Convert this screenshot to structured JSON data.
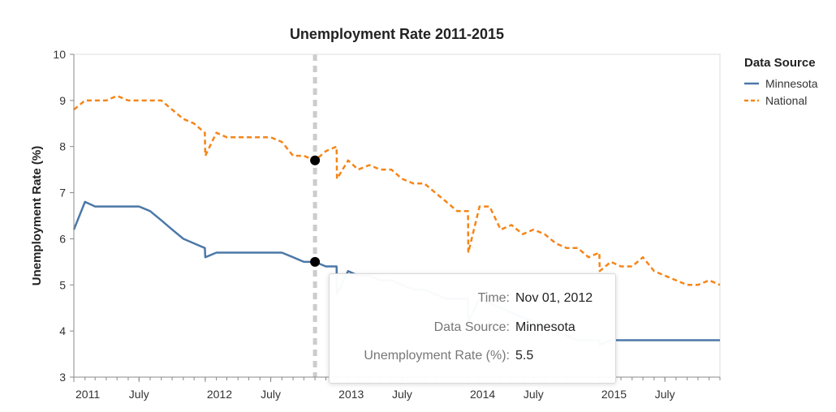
{
  "chart_data": {
    "type": "line",
    "title": "Unemployment Rate 2011-2015",
    "xlabel": "",
    "ylabel": "Unemployment Rate (%)",
    "ylim": [
      3,
      10
    ],
    "xlim": [
      "2011-01-01",
      "2015-12-01"
    ],
    "y_ticks": [
      3,
      4,
      5,
      6,
      7,
      8,
      9,
      10
    ],
    "x_ticks": [
      {
        "date": "2011-01-01",
        "label": "2011"
      },
      {
        "date": "2011-07-01",
        "label": "July"
      },
      {
        "date": "2012-01-01",
        "label": "2012"
      },
      {
        "date": "2012-07-01",
        "label": "July"
      },
      {
        "date": "2013-01-01",
        "label": "2013"
      },
      {
        "date": "2013-07-01",
        "label": "July"
      },
      {
        "date": "2014-01-01",
        "label": "2014"
      },
      {
        "date": "2014-07-01",
        "label": "July"
      },
      {
        "date": "2015-01-01",
        "label": "2015"
      },
      {
        "date": "2015-07-01",
        "label": "July"
      }
    ],
    "legend": {
      "title": "Data Source",
      "position": "top-right"
    },
    "grid": false,
    "series": [
      {
        "name": "Minnesota",
        "color": "#4c78a8",
        "dash": "solid",
        "points": [
          [
            "2011-01-01",
            6.2
          ],
          [
            "2011-02-01",
            6.8
          ],
          [
            "2011-03-01",
            6.7
          ],
          [
            "2011-04-01",
            6.7
          ],
          [
            "2011-05-01",
            6.7
          ],
          [
            "2011-06-01",
            6.7
          ],
          [
            "2011-07-01",
            6.7
          ],
          [
            "2011-08-01",
            6.6
          ],
          [
            "2011-09-01",
            6.4
          ],
          [
            "2011-10-01",
            6.2
          ],
          [
            "2011-11-01",
            6.0
          ],
          [
            "2011-12-01",
            5.9
          ],
          [
            "2011-12-31",
            5.8
          ],
          [
            "2012-01-01",
            5.6
          ],
          [
            "2012-02-01",
            5.7
          ],
          [
            "2012-03-01",
            5.7
          ],
          [
            "2012-04-01",
            5.7
          ],
          [
            "2012-05-01",
            5.7
          ],
          [
            "2012-06-01",
            5.7
          ],
          [
            "2012-07-01",
            5.7
          ],
          [
            "2012-08-01",
            5.7
          ],
          [
            "2012-09-01",
            5.6
          ],
          [
            "2012-10-01",
            5.5
          ],
          [
            "2012-11-01",
            5.5
          ],
          [
            "2012-12-01",
            5.4
          ],
          [
            "2012-12-31",
            5.4
          ],
          [
            "2013-01-01",
            4.8
          ],
          [
            "2013-02-01",
            5.3
          ],
          [
            "2013-03-01",
            5.2
          ],
          [
            "2013-04-01",
            5.2
          ],
          [
            "2013-05-01",
            5.1
          ],
          [
            "2013-06-01",
            5.1
          ],
          [
            "2013-07-01",
            5.0
          ],
          [
            "2013-08-01",
            4.9
          ],
          [
            "2013-09-01",
            4.9
          ],
          [
            "2013-10-01",
            4.8
          ],
          [
            "2013-11-01",
            4.7
          ],
          [
            "2013-12-01",
            4.7
          ],
          [
            "2013-12-31",
            4.7
          ],
          [
            "2014-01-01",
            4.2
          ],
          [
            "2014-02-01",
            4.7
          ],
          [
            "2014-03-01",
            4.6
          ],
          [
            "2014-04-01",
            4.5
          ],
          [
            "2014-05-01",
            4.4
          ],
          [
            "2014-06-01",
            4.3
          ],
          [
            "2014-07-01",
            4.2
          ],
          [
            "2014-08-01",
            4.1
          ],
          [
            "2014-09-01",
            4.0
          ],
          [
            "2014-10-01",
            3.9
          ],
          [
            "2014-11-01",
            3.8
          ],
          [
            "2014-12-01",
            3.8
          ],
          [
            "2014-12-31",
            3.8
          ],
          [
            "2015-01-01",
            3.7
          ],
          [
            "2015-02-01",
            3.8
          ],
          [
            "2015-03-01",
            3.8
          ],
          [
            "2015-04-01",
            3.8
          ],
          [
            "2015-05-01",
            3.8
          ],
          [
            "2015-06-01",
            3.8
          ],
          [
            "2015-07-01",
            3.8
          ],
          [
            "2015-08-01",
            3.8
          ],
          [
            "2015-09-01",
            3.8
          ],
          [
            "2015-10-01",
            3.8
          ],
          [
            "2015-11-01",
            3.8
          ],
          [
            "2015-12-01",
            3.8
          ]
        ]
      },
      {
        "name": "National",
        "color": "#f58518",
        "dash": "dashed",
        "points": [
          [
            "2011-01-01",
            8.8
          ],
          [
            "2011-02-01",
            9.0
          ],
          [
            "2011-03-01",
            9.0
          ],
          [
            "2011-04-01",
            9.0
          ],
          [
            "2011-05-01",
            9.1
          ],
          [
            "2011-06-01",
            9.0
          ],
          [
            "2011-07-01",
            9.0
          ],
          [
            "2011-08-01",
            9.0
          ],
          [
            "2011-09-01",
            9.0
          ],
          [
            "2011-10-01",
            8.8
          ],
          [
            "2011-11-01",
            8.6
          ],
          [
            "2011-12-01",
            8.5
          ],
          [
            "2011-12-31",
            8.3
          ],
          [
            "2012-01-01",
            7.8
          ],
          [
            "2012-02-01",
            8.3
          ],
          [
            "2012-03-01",
            8.2
          ],
          [
            "2012-04-01",
            8.2
          ],
          [
            "2012-05-01",
            8.2
          ],
          [
            "2012-06-01",
            8.2
          ],
          [
            "2012-07-01",
            8.2
          ],
          [
            "2012-08-01",
            8.1
          ],
          [
            "2012-09-01",
            7.8
          ],
          [
            "2012-10-01",
            7.8
          ],
          [
            "2012-11-01",
            7.7
          ],
          [
            "2012-12-01",
            7.9
          ],
          [
            "2012-12-31",
            8.0
          ],
          [
            "2013-01-01",
            7.3
          ],
          [
            "2013-02-01",
            7.7
          ],
          [
            "2013-03-01",
            7.5
          ],
          [
            "2013-04-01",
            7.6
          ],
          [
            "2013-05-01",
            7.5
          ],
          [
            "2013-06-01",
            7.5
          ],
          [
            "2013-07-01",
            7.3
          ],
          [
            "2013-08-01",
            7.2
          ],
          [
            "2013-09-01",
            7.2
          ],
          [
            "2013-10-01",
            7.0
          ],
          [
            "2013-11-01",
            6.8
          ],
          [
            "2013-12-01",
            6.6
          ],
          [
            "2013-12-31",
            6.6
          ],
          [
            "2014-01-01",
            5.7
          ],
          [
            "2014-02-01",
            6.7
          ],
          [
            "2014-03-01",
            6.7
          ],
          [
            "2014-04-01",
            6.2
          ],
          [
            "2014-05-01",
            6.3
          ],
          [
            "2014-06-01",
            6.1
          ],
          [
            "2014-07-01",
            6.2
          ],
          [
            "2014-08-01",
            6.1
          ],
          [
            "2014-09-01",
            5.9
          ],
          [
            "2014-10-01",
            5.8
          ],
          [
            "2014-11-01",
            5.8
          ],
          [
            "2014-12-01",
            5.6
          ],
          [
            "2014-12-31",
            5.7
          ],
          [
            "2015-01-01",
            5.3
          ],
          [
            "2015-02-01",
            5.5
          ],
          [
            "2015-03-01",
            5.4
          ],
          [
            "2015-04-01",
            5.4
          ],
          [
            "2015-05-01",
            5.6
          ],
          [
            "2015-06-01",
            5.3
          ],
          [
            "2015-07-01",
            5.2
          ],
          [
            "2015-08-01",
            5.1
          ],
          [
            "2015-09-01",
            5.0
          ],
          [
            "2015-10-01",
            5.0
          ],
          [
            "2015-11-01",
            5.1
          ],
          [
            "2015-12-01",
            5.0
          ]
        ]
      }
    ],
    "hover": {
      "date": "2012-11-01",
      "points": [
        {
          "series": "National",
          "value": 7.7
        },
        {
          "series": "Minnesota",
          "value": 5.5
        }
      ]
    }
  },
  "tooltip": {
    "rows": [
      {
        "key": "Time:",
        "value": "Nov 01, 2012"
      },
      {
        "key": "Data Source:",
        "value": "Minnesota"
      },
      {
        "key": "Unemployment Rate (%):",
        "value": "5.5"
      }
    ]
  }
}
